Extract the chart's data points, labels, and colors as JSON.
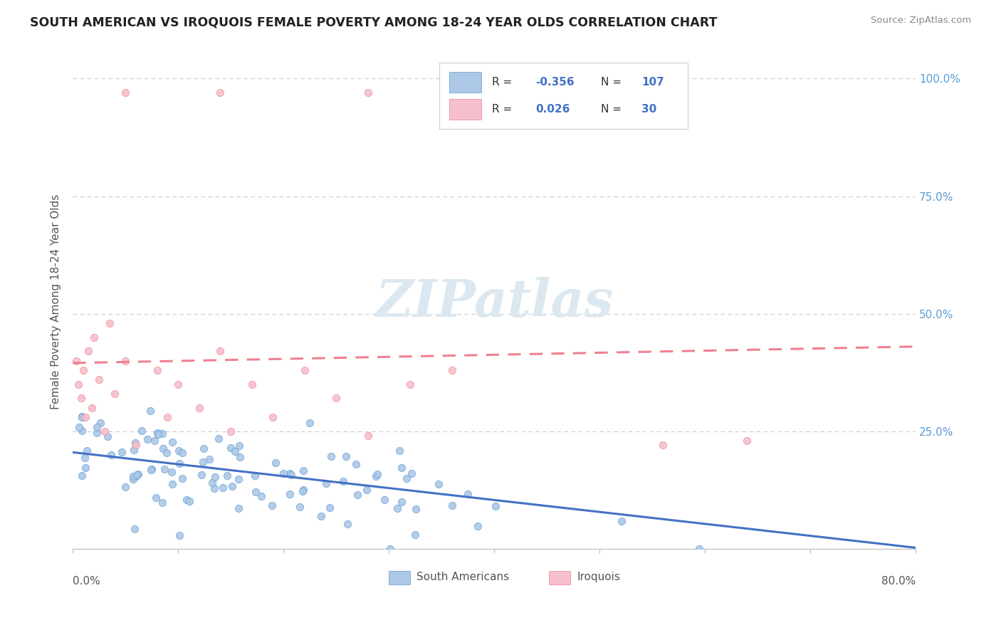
{
  "title": "SOUTH AMERICAN VS IROQUOIS FEMALE POVERTY AMONG 18-24 YEAR OLDS CORRELATION CHART",
  "source": "Source: ZipAtlas.com",
  "ylabel": "Female Poverty Among 18-24 Year Olds",
  "xlim": [
    0.0,
    0.8
  ],
  "ylim": [
    0.0,
    1.05
  ],
  "sa_R": "-0.356",
  "sa_N": "107",
  "iq_R": "0.026",
  "iq_N": "30",
  "sa_color": "#adc8e6",
  "sa_edge_color": "#5b9bd5",
  "iq_color": "#f5c0cb",
  "iq_edge_color": "#f08090",
  "sa_line_color": "#4472c4",
  "iq_line_color": "#f08090",
  "background_color": "#ffffff",
  "grid_color": "#cccccc",
  "right_axis_color": "#5b9bd5",
  "legend_value_color": "#4472c4",
  "watermark_color": "#dce8f0",
  "title_color": "#222222",
  "source_color": "#888888",
  "ylabel_color": "#555555",
  "ytick_labels": [
    "",
    "25.0%",
    "50.0%",
    "75.0%",
    "100.0%"
  ],
  "ytick_values": [
    0.0,
    0.25,
    0.5,
    0.75,
    1.0
  ]
}
